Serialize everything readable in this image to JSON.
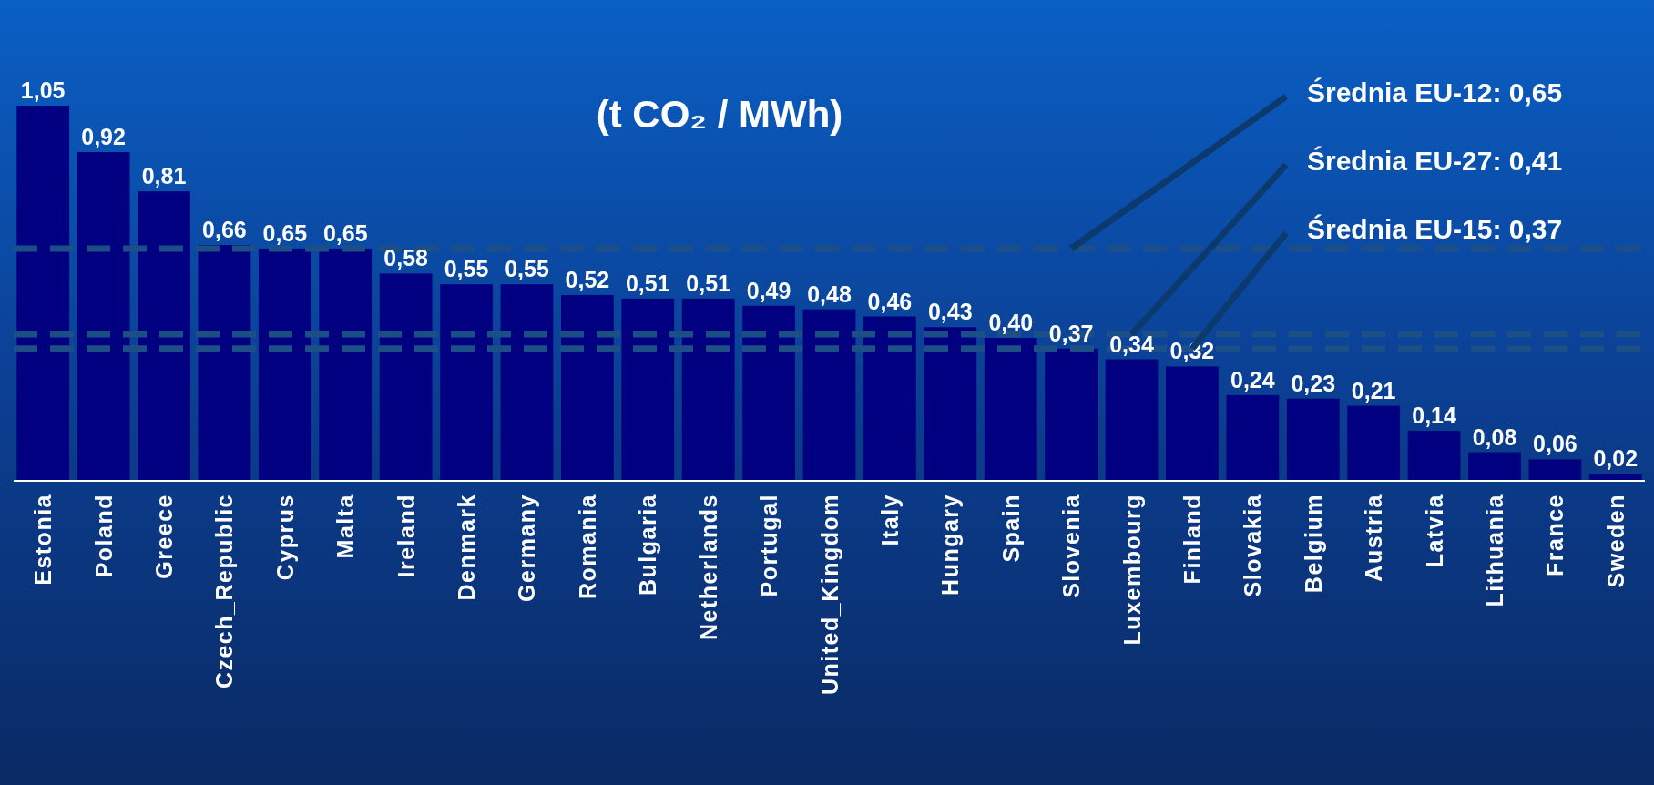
{
  "chart_data": {
    "type": "bar",
    "title": "(t CO₂ / MWh)",
    "categories": [
      "Estonia",
      "Poland",
      "Greece",
      "Czech_Republic",
      "Cyprus",
      "Malta",
      "Ireland",
      "Denmark",
      "Germany",
      "Romania",
      "Bulgaria",
      "Netherlands",
      "Portugal",
      "United_Kingdom",
      "Italy",
      "Hungary",
      "Spain",
      "Slovenia",
      "Luxembourg",
      "Finland",
      "Slovakia",
      "Belgium",
      "Austria",
      "Latvia",
      "Lithuania",
      "France",
      "Sweden"
    ],
    "values": [
      1.05,
      0.92,
      0.81,
      0.66,
      0.65,
      0.65,
      0.58,
      0.55,
      0.55,
      0.52,
      0.51,
      0.51,
      0.49,
      0.48,
      0.46,
      0.43,
      0.4,
      0.37,
      0.34,
      0.32,
      0.24,
      0.23,
      0.21,
      0.14,
      0.08,
      0.06,
      0.02
    ],
    "value_labels": [
      "1,05",
      "0,92",
      "0,81",
      "0,66",
      "0,65",
      "0,65",
      "0,58",
      "0,55",
      "0,55",
      "0,52",
      "0,51",
      "0,51",
      "0,49",
      "0,48",
      "0,46",
      "0,43",
      "0,40",
      "0,37",
      "0,34",
      "0,32",
      "0,24",
      "0,23",
      "0,21",
      "0,14",
      "0,08",
      "0,06",
      "0,02"
    ],
    "color": "#000080",
    "ref_lines": [
      {
        "axis": "y",
        "value": 0.65,
        "label": "Średnia EU-12: 0,65",
        "color": "#1c4f86",
        "line_style": "dashed"
      },
      {
        "axis": "y",
        "value": 0.41,
        "label": "Średnia EU-27: 0,41",
        "color": "#1c4f86",
        "line_style": "dashed"
      },
      {
        "axis": "y",
        "value": 0.37,
        "label": "Średnia EU-15: 0,37",
        "color": "#1c4f86",
        "line_style": "dashed"
      }
    ]
  }
}
